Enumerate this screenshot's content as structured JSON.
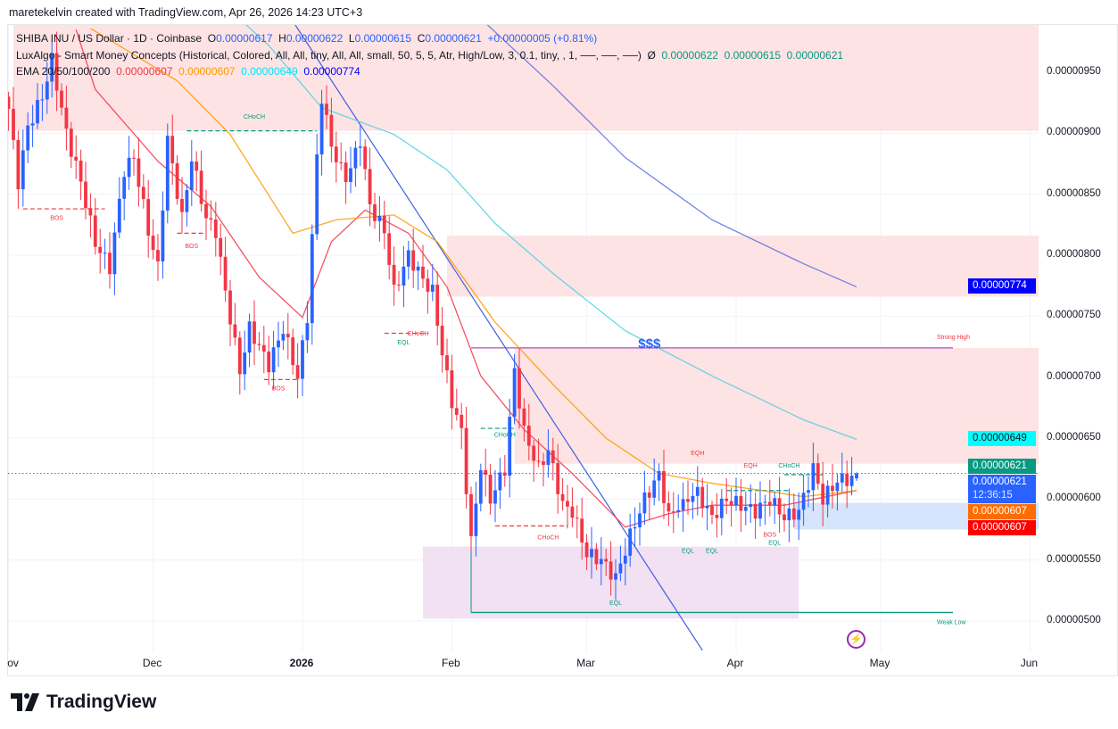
{
  "credit": "maretekelvin created with TradingView.com, Apr 26, 2026 14:23 UTC+3",
  "legend": {
    "symbol": "SHIBA INU / US Dollar · 1D · Coinbase",
    "o_label": "O",
    "o": "0.00000617",
    "h_label": "H",
    "h": "0.00000622",
    "l_label": "L",
    "l": "0.00000615",
    "c_label": "C",
    "c": "0.00000621",
    "change": "+0.00000005 (+0.81%)",
    "smc_name": "LuxAlgo - Smart Money Concepts (Historical, Colored, All, All, tiny, All, All, small, 50, 5, 5, Atr, High/Low, 3, 0.1, tiny, , 1, ──, ──, ──)",
    "smc_symbol": "Ø",
    "smc_values": "0.00000622  0.00000615  0.00000621",
    "ema_name": "EMA 20/50/100/200",
    "ema20": "0.00000607",
    "ema50": "0.00000607",
    "ema100": "0.00000649",
    "ema200": "0.00000774"
  },
  "price_axis": {
    "ticks": [
      "0.00000950",
      "0.00000900",
      "0.00000850",
      "0.00000800",
      "0.00000750",
      "0.00000700",
      "0.00000650",
      "0.00000600",
      "0.00000550",
      "0.00000500"
    ],
    "tags": [
      {
        "text": "0.00000774",
        "value": 7.74e-06,
        "bg": "#0000ff"
      },
      {
        "text": "0.00000649",
        "value": 6.49e-06,
        "bg": "#00ffff",
        "fg": "#131722"
      },
      {
        "text": "0.00000621",
        "value": 6.26e-06,
        "bg": "#089981"
      },
      {
        "text": "0.00000621",
        "value": 6.18e-06,
        "bg": "#2962ff",
        "countdown": "12:36:15"
      },
      {
        "text": "0.00000607",
        "value": 6.07e-06,
        "bg": "#ff6d00"
      },
      {
        "text": "0.00000607",
        "value": 5.95e-06,
        "bg": "#ff0000"
      }
    ]
  },
  "time_axis": [
    {
      "label": "ov",
      "date": "2025-11-01"
    },
    {
      "label": "Dec",
      "date": "2025-12-01"
    },
    {
      "label": "2026",
      "date": "2026-01-01",
      "bold": true
    },
    {
      "label": "Feb",
      "date": "2026-02-01"
    },
    {
      "label": "Mar",
      "date": "2026-03-01"
    },
    {
      "label": "Apr",
      "date": "2026-04-01"
    },
    {
      "label": "May",
      "date": "2026-05-01"
    },
    {
      "label": "Jun",
      "date": "2026-06-01"
    }
  ],
  "logo_text": "TradingView",
  "flash_icon": "lightning-bolt-icon",
  "colors": {
    "up": "#2962ff",
    "down": "#f23645",
    "ema20": "#f23645",
    "ema50": "#ff9800",
    "ema100": "#4dd0e1",
    "ema200": "#5b6ee1",
    "trendline": "#3f5fe0"
  },
  "chart_data": {
    "type": "candlestick",
    "symbol": "SHIBA INU / US Dollar",
    "interval": "1D",
    "ylim": [
      4.85e-06,
      9.9e-06
    ],
    "xlim": [
      "2025-11-01",
      "2026-06-05"
    ],
    "grid": true,
    "last_candle": {
      "date": "2026-04-26",
      "o": 6.17e-06,
      "h": 6.22e-06,
      "l": 6.15e-06,
      "c": 6.21e-06
    },
    "close_path": [
      [
        "2025-11-01",
        9.2e-06
      ],
      [
        "2025-11-03",
        8.6e-06
      ],
      [
        "2025-11-05",
        9.05e-06
      ],
      [
        "2025-11-08",
        9.3e-06
      ],
      [
        "2025-11-10",
        9.6e-06
      ],
      [
        "2025-11-13",
        9e-06
      ],
      [
        "2025-11-16",
        8.6e-06
      ],
      [
        "2025-11-19",
        8.1e-06
      ],
      [
        "2025-11-22",
        7.9e-06
      ],
      [
        "2025-11-25",
        8.7e-06
      ],
      [
        "2025-11-27",
        8.8e-06
      ],
      [
        "2025-11-30",
        8.2e-06
      ],
      [
        "2025-12-02",
        7.9e-06
      ],
      [
        "2025-12-04",
        8.95e-06
      ],
      [
        "2025-12-07",
        8.3e-06
      ],
      [
        "2025-12-09",
        8.8e-06
      ],
      [
        "2025-12-12",
        8.3e-06
      ],
      [
        "2025-12-14",
        8.2e-06
      ],
      [
        "2025-12-16",
        7.7e-06
      ],
      [
        "2025-12-19",
        7.05e-06
      ],
      [
        "2025-12-21",
        7.4e-06
      ],
      [
        "2025-12-25",
        7.1e-06
      ],
      [
        "2025-12-28",
        7.4e-06
      ],
      [
        "2025-12-31",
        7e-06
      ],
      [
        "2026-01-02",
        7.5e-06
      ],
      [
        "2026-01-04",
        8.8e-06
      ],
      [
        "2026-01-05",
        9.3e-06
      ],
      [
        "2026-01-07",
        8.9e-06
      ],
      [
        "2026-01-10",
        8.6e-06
      ],
      [
        "2026-01-13",
        8.95e-06
      ],
      [
        "2026-01-15",
        8.4e-06
      ],
      [
        "2026-01-18",
        8.2e-06
      ],
      [
        "2026-01-20",
        7.7e-06
      ],
      [
        "2026-01-23",
        8e-06
      ],
      [
        "2026-01-26",
        7.8e-06
      ],
      [
        "2026-01-28",
        7.7e-06
      ],
      [
        "2026-01-30",
        7.2e-06
      ],
      [
        "2026-02-01",
        6.8e-06
      ],
      [
        "2026-02-03",
        6.55e-06
      ],
      [
        "2026-02-05",
        5.65e-06
      ],
      [
        "2026-02-07",
        6.28e-06
      ],
      [
        "2026-02-09",
        6e-06
      ],
      [
        "2026-02-12",
        6.25e-06
      ],
      [
        "2026-02-14",
        7.05e-06
      ],
      [
        "2026-02-16",
        6.55e-06
      ],
      [
        "2026-02-19",
        6.25e-06
      ],
      [
        "2026-02-21",
        6.4e-06
      ],
      [
        "2026-02-24",
        5.95e-06
      ],
      [
        "2026-02-26",
        5.9e-06
      ],
      [
        "2026-03-01",
        5.55e-06
      ],
      [
        "2026-03-04",
        5.5e-06
      ],
      [
        "2026-03-07",
        5.35e-06
      ],
      [
        "2026-03-10",
        5.7e-06
      ],
      [
        "2026-03-13",
        6e-06
      ],
      [
        "2026-03-16",
        6.2e-06
      ],
      [
        "2026-03-18",
        5.85e-06
      ],
      [
        "2026-03-21",
        6e-06
      ],
      [
        "2026-03-24",
        6.05e-06
      ],
      [
        "2026-03-27",
        5.85e-06
      ],
      [
        "2026-03-30",
        6e-06
      ],
      [
        "2026-04-02",
        5.95e-06
      ],
      [
        "2026-04-05",
        5.9e-06
      ],
      [
        "2026-04-08",
        6e-06
      ],
      [
        "2026-04-11",
        5.85e-06
      ],
      [
        "2026-04-14",
        5.9e-06
      ],
      [
        "2026-04-17",
        6.25e-06
      ],
      [
        "2026-04-19",
        6e-06
      ],
      [
        "2026-04-22",
        6.15e-06
      ],
      [
        "2026-04-25",
        6.17e-06
      ],
      [
        "2026-04-26",
        6.21e-06
      ]
    ],
    "ema": [
      {
        "name": "EMA 20",
        "color": "#f23645",
        "points": [
          [
            "2025-11-15",
            9.85e-06
          ],
          [
            "2025-11-19",
            9.36e-06
          ],
          [
            "2025-12-02",
            8.77e-06
          ],
          [
            "2025-12-13",
            8.4e-06
          ],
          [
            "2025-12-23",
            7.82e-06
          ],
          [
            "2026-01-01",
            7.49e-06
          ],
          [
            "2026-01-07",
            8.11e-06
          ],
          [
            "2026-01-14",
            8.37e-06
          ],
          [
            "2026-01-23",
            8.18e-06
          ],
          [
            "2026-01-31",
            7.74e-06
          ],
          [
            "2026-02-07",
            7.01e-06
          ],
          [
            "2026-02-16",
            6.57e-06
          ],
          [
            "2026-02-26",
            6.21e-06
          ],
          [
            "2026-03-09",
            5.77e-06
          ],
          [
            "2026-03-18",
            5.88e-06
          ],
          [
            "2026-03-27",
            5.95e-06
          ],
          [
            "2026-04-11",
            5.95e-06
          ],
          [
            "2026-04-26",
            6.07e-06
          ]
        ]
      },
      {
        "name": "EMA 50",
        "color": "#ff9800",
        "points": [
          [
            "2025-11-18",
            9.86e-06
          ],
          [
            "2025-12-06",
            9.43e-06
          ],
          [
            "2025-12-17",
            8.99e-06
          ],
          [
            "2025-12-30",
            8.18e-06
          ],
          [
            "2026-01-08",
            8.29e-06
          ],
          [
            "2026-01-20",
            8.33e-06
          ],
          [
            "2026-01-29",
            8.11e-06
          ],
          [
            "2026-02-10",
            7.45e-06
          ],
          [
            "2026-02-22",
            6.94e-06
          ],
          [
            "2026-03-05",
            6.5e-06
          ],
          [
            "2026-03-16",
            6.21e-06
          ],
          [
            "2026-03-27",
            6.13e-06
          ],
          [
            "2026-04-15",
            6.02e-06
          ],
          [
            "2026-04-26",
            6.07e-06
          ]
        ]
      },
      {
        "name": "EMA 100",
        "color": "#4dd0e1",
        "points": [
          [
            "2025-12-20",
            9.9e-06
          ],
          [
            "2025-12-25",
            9.72e-06
          ],
          [
            "2026-01-05",
            9.21e-06
          ],
          [
            "2026-01-20",
            8.99e-06
          ],
          [
            "2026-01-31",
            8.7e-06
          ],
          [
            "2026-02-10",
            8.26e-06
          ],
          [
            "2026-02-22",
            7.85e-06
          ],
          [
            "2026-03-09",
            7.38e-06
          ],
          [
            "2026-03-27",
            7.01e-06
          ],
          [
            "2026-04-15",
            6.65e-06
          ],
          [
            "2026-04-26",
            6.49e-06
          ]
        ]
      },
      {
        "name": "EMA 200",
        "color": "#5b6ee1",
        "points": [
          [
            "2026-02-03",
            1.01e-05
          ],
          [
            "2026-02-07",
            9.94e-06
          ],
          [
            "2026-02-22",
            9.39e-06
          ],
          [
            "2026-03-09",
            8.8e-06
          ],
          [
            "2026-03-27",
            8.29e-06
          ],
          [
            "2026-04-15",
            7.93e-06
          ],
          [
            "2026-04-26",
            7.74e-06
          ]
        ]
      }
    ],
    "zones": [
      {
        "from": "2025-11-02",
        "top": 9.9e-06,
        "bottom": 9.02e-06,
        "color": "#fde3e3"
      },
      {
        "from": "2026-01-31",
        "top": 8.16e-06,
        "bottom": 7.66e-06,
        "color": "#fde3e3"
      },
      {
        "from": "2026-02-14",
        "top": 7.24e-06,
        "bottom": 6.29e-06,
        "color": "#fde3e3"
      },
      {
        "from": "2026-04-13",
        "top": 5.97e-06,
        "bottom": 5.75e-06,
        "color": "#d6e4fc"
      },
      {
        "from": "2026-01-26",
        "to": "2026-04-14",
        "top": 5.61e-06,
        "bottom": 5.02e-06,
        "color": "#f1e1f3"
      }
    ],
    "structure_lines": [
      {
        "from": "2025-11-04",
        "to": "2025-11-21",
        "price": 8.38e-06,
        "color": "#f23645"
      },
      {
        "from": "2025-12-08",
        "to": "2026-01-04",
        "price": 9.02e-06,
        "color": "#089981"
      },
      {
        "from": "2025-12-06",
        "to": "2025-12-12",
        "price": 8.18e-06,
        "color": "#f23645"
      },
      {
        "from": "2025-12-24",
        "to": "2025-12-31",
        "price": 6.98e-06,
        "color": "#f23645"
      },
      {
        "from": "2026-01-18",
        "to": "2026-01-27",
        "price": 7.36e-06,
        "color": "#f23645"
      },
      {
        "from": "2026-02-07",
        "to": "2026-02-14",
        "price": 6.58e-06,
        "color": "#089981"
      },
      {
        "from": "2026-02-10",
        "to": "2026-02-25",
        "price": 5.78e-06,
        "color": "#f23645"
      },
      {
        "from": "2026-03-30",
        "to": "2026-04-12",
        "price": 6.07e-06,
        "color": "#089981"
      },
      {
        "from": "2026-04-11",
        "to": "2026-04-19",
        "price": 6.2e-06,
        "color": "#089981"
      }
    ],
    "strong_high": {
      "label": "Strong High",
      "from": "2026-02-05",
      "to": "2026-05-16",
      "price": 7.24e-06,
      "color": "#b04fc0"
    },
    "weak_low": {
      "label": "Weak Low",
      "from": "2026-02-05",
      "to": "2026-05-16",
      "price": 5.07e-06,
      "color": "#089981"
    },
    "trendline": {
      "from": [
        "2026-01-12",
        9.13e-06
      ],
      "to": [
        "2026-03-25",
        4.76e-06
      ]
    },
    "current_price": 6.21e-06,
    "labels": [
      {
        "text": "CHoCH",
        "date": "2025-12-22",
        "price": 9.12e-06,
        "color": "#089981"
      },
      {
        "text": "BOS",
        "date": "2025-11-11",
        "price": 8.29e-06,
        "color": "#f23645"
      },
      {
        "text": "BOS",
        "date": "2025-12-09",
        "price": 8.06e-06,
        "color": "#f23645"
      },
      {
        "text": "BOS",
        "date": "2025-12-27",
        "price": 6.89e-06,
        "color": "#f23645"
      },
      {
        "text": "CHoCH",
        "date": "2026-01-25",
        "price": 7.34e-06,
        "color": "#f23645"
      },
      {
        "text": "EQL",
        "date": "2026-01-22",
        "price": 7.27e-06,
        "color": "#089981"
      },
      {
        "text": "CHoCH",
        "date": "2026-02-12",
        "price": 6.51e-06,
        "color": "#089981"
      },
      {
        "text": "CHoCH",
        "date": "2026-02-21",
        "price": 5.67e-06,
        "color": "#f23645"
      },
      {
        "text": "EQL",
        "date": "2026-03-07",
        "price": 5.13e-06,
        "color": "#089981"
      },
      {
        "text": "EQH",
        "date": "2026-03-24",
        "price": 6.36e-06,
        "color": "#f23645"
      },
      {
        "text": "EQL",
        "date": "2026-03-22",
        "price": 5.56e-06,
        "color": "#089981"
      },
      {
        "text": "EQL",
        "date": "2026-03-27",
        "price": 5.56e-06,
        "color": "#089981"
      },
      {
        "text": "EQH",
        "date": "2026-04-04",
        "price": 6.26e-06,
        "color": "#f23645"
      },
      {
        "text": "CHoCH",
        "date": "2026-04-12",
        "price": 6.26e-06,
        "color": "#089981"
      },
      {
        "text": "BOS",
        "date": "2026-04-08",
        "price": 5.69e-06,
        "color": "#f23645"
      },
      {
        "text": "EQL",
        "date": "2026-04-09",
        "price": 5.65e-06,
        "color": "#089981"
      },
      {
        "text": "$$$",
        "date": "2026-03-14",
        "price": 7.24e-06,
        "color": "#2962ff",
        "big": true
      }
    ]
  }
}
